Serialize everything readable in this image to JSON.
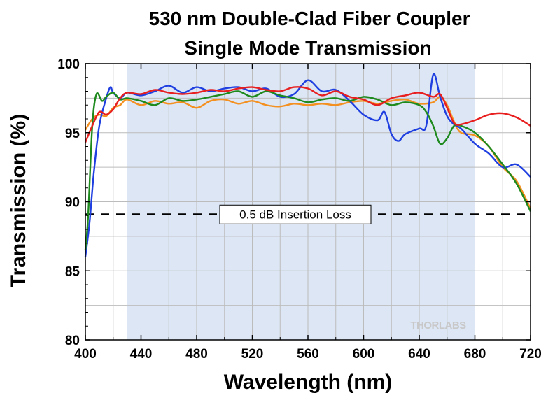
{
  "chart_data": {
    "type": "line",
    "title": "530 nm Double-Clad Fiber Coupler",
    "subtitle": "Single Mode Transmission",
    "xlabel": "Wavelength (nm)",
    "ylabel": "Transmission (%)",
    "xlim": [
      400,
      720
    ],
    "ylim": [
      80,
      100
    ],
    "x_ticks": [
      400,
      440,
      480,
      520,
      560,
      600,
      640,
      680,
      720
    ],
    "y_ticks": [
      80,
      85,
      90,
      95,
      100
    ],
    "grid": true,
    "shaded_band": {
      "x": [
        430,
        680
      ],
      "color": "#dce6f5"
    },
    "reference_line": {
      "y": 89.1,
      "label": "0.5 dB Insertion Loss",
      "style": "dashed"
    },
    "watermark": "THORLABS",
    "series": [
      {
        "color": "#f4901f",
        "points": [
          [
            400,
            95.2
          ],
          [
            405,
            96.0
          ],
          [
            410,
            96.3
          ],
          [
            415,
            96.2
          ],
          [
            420,
            96.8
          ],
          [
            425,
            97.0
          ],
          [
            430,
            97.4
          ],
          [
            440,
            97.0
          ],
          [
            450,
            97.3
          ],
          [
            460,
            97.1
          ],
          [
            470,
            97.2
          ],
          [
            480,
            96.8
          ],
          [
            490,
            97.3
          ],
          [
            500,
            97.4
          ],
          [
            510,
            97.1
          ],
          [
            520,
            97.3
          ],
          [
            530,
            97.0
          ],
          [
            540,
            96.9
          ],
          [
            550,
            97.1
          ],
          [
            560,
            97.0
          ],
          [
            570,
            97.1
          ],
          [
            580,
            97.0
          ],
          [
            590,
            97.2
          ],
          [
            600,
            97.3
          ],
          [
            610,
            97.1
          ],
          [
            620,
            97.3
          ],
          [
            630,
            97.4
          ],
          [
            640,
            97.1
          ],
          [
            650,
            97.2
          ],
          [
            655,
            97.6
          ],
          [
            660,
            97.0
          ],
          [
            665,
            95.8
          ],
          [
            670,
            95.0
          ],
          [
            680,
            94.8
          ],
          [
            690,
            94.0
          ],
          [
            700,
            92.5
          ],
          [
            710,
            91.5
          ],
          [
            720,
            89.5
          ]
        ]
      },
      {
        "color": "#1f3fe0",
        "points": [
          [
            400,
            86.0
          ],
          [
            403,
            88.5
          ],
          [
            406,
            92.0
          ],
          [
            410,
            95.5
          ],
          [
            415,
            97.5
          ],
          [
            418,
            98.3
          ],
          [
            420,
            97.9
          ],
          [
            425,
            97.5
          ],
          [
            430,
            97.9
          ],
          [
            440,
            97.7
          ],
          [
            450,
            98.0
          ],
          [
            460,
            98.4
          ],
          [
            470,
            97.9
          ],
          [
            480,
            98.3
          ],
          [
            490,
            98.0
          ],
          [
            500,
            98.2
          ],
          [
            510,
            98.3
          ],
          [
            520,
            98.0
          ],
          [
            530,
            98.2
          ],
          [
            540,
            97.6
          ],
          [
            550,
            97.8
          ],
          [
            560,
            98.8
          ],
          [
            570,
            98.0
          ],
          [
            580,
            98.1
          ],
          [
            590,
            97.3
          ],
          [
            600,
            96.3
          ],
          [
            610,
            95.9
          ],
          [
            615,
            96.5
          ],
          [
            620,
            94.9
          ],
          [
            625,
            94.4
          ],
          [
            630,
            94.9
          ],
          [
            640,
            95.3
          ],
          [
            645,
            95.5
          ],
          [
            650,
            99.2
          ],
          [
            655,
            97.6
          ],
          [
            660,
            96.2
          ],
          [
            665,
            95.6
          ],
          [
            670,
            95.3
          ],
          [
            680,
            94.2
          ],
          [
            690,
            93.5
          ],
          [
            700,
            92.5
          ],
          [
            710,
            92.7
          ],
          [
            720,
            91.8
          ]
        ]
      },
      {
        "color": "#1e8a1e",
        "points": [
          [
            400,
            86.5
          ],
          [
            402,
            89.0
          ],
          [
            405,
            95.5
          ],
          [
            408,
            97.8
          ],
          [
            412,
            97.3
          ],
          [
            415,
            97.6
          ],
          [
            420,
            97.9
          ],
          [
            425,
            97.4
          ],
          [
            430,
            97.5
          ],
          [
            440,
            97.3
          ],
          [
            450,
            97.0
          ],
          [
            460,
            97.5
          ],
          [
            470,
            97.3
          ],
          [
            480,
            97.4
          ],
          [
            490,
            97.6
          ],
          [
            500,
            97.8
          ],
          [
            510,
            98.0
          ],
          [
            520,
            97.6
          ],
          [
            530,
            98.0
          ],
          [
            540,
            97.7
          ],
          [
            550,
            97.5
          ],
          [
            560,
            97.2
          ],
          [
            570,
            97.4
          ],
          [
            580,
            97.5
          ],
          [
            590,
            97.3
          ],
          [
            600,
            97.6
          ],
          [
            610,
            97.4
          ],
          [
            620,
            97.0
          ],
          [
            630,
            97.2
          ],
          [
            640,
            97.0
          ],
          [
            645,
            96.5
          ],
          [
            650,
            95.5
          ],
          [
            655,
            94.2
          ],
          [
            660,
            94.6
          ],
          [
            665,
            95.5
          ],
          [
            670,
            95.5
          ],
          [
            680,
            95.0
          ],
          [
            690,
            94.0
          ],
          [
            700,
            92.7
          ],
          [
            710,
            91.3
          ],
          [
            720,
            89.3
          ]
        ]
      },
      {
        "color": "#e81f1f",
        "points": [
          [
            400,
            94.3
          ],
          [
            405,
            95.5
          ],
          [
            410,
            96.5
          ],
          [
            415,
            96.3
          ],
          [
            420,
            96.7
          ],
          [
            425,
            97.5
          ],
          [
            430,
            97.9
          ],
          [
            440,
            97.8
          ],
          [
            450,
            98.1
          ],
          [
            460,
            97.9
          ],
          [
            470,
            97.8
          ],
          [
            480,
            97.9
          ],
          [
            490,
            98.1
          ],
          [
            500,
            98.0
          ],
          [
            510,
            98.2
          ],
          [
            520,
            98.3
          ],
          [
            530,
            98.1
          ],
          [
            540,
            98.0
          ],
          [
            550,
            98.3
          ],
          [
            560,
            98.2
          ],
          [
            570,
            97.7
          ],
          [
            580,
            98.0
          ],
          [
            590,
            97.6
          ],
          [
            600,
            97.4
          ],
          [
            610,
            97.0
          ],
          [
            620,
            97.5
          ],
          [
            630,
            97.7
          ],
          [
            640,
            97.9
          ],
          [
            650,
            97.6
          ],
          [
            655,
            97.8
          ],
          [
            660,
            96.8
          ],
          [
            665,
            95.7
          ],
          [
            670,
            95.6
          ],
          [
            680,
            95.9
          ],
          [
            690,
            96.3
          ],
          [
            700,
            96.4
          ],
          [
            710,
            96.1
          ],
          [
            720,
            95.5
          ]
        ]
      }
    ]
  }
}
